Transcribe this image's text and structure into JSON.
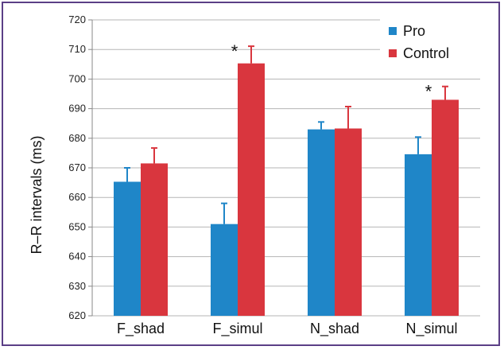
{
  "chart_data": {
    "type": "bar",
    "ylabel": "R–R intervals (ms)",
    "xlabel": "",
    "title": "",
    "ylim": [
      620,
      720
    ],
    "yticks": [
      620,
      630,
      640,
      650,
      660,
      670,
      680,
      690,
      700,
      710,
      720
    ],
    "grid": true,
    "legend_position": "top-right",
    "categories": [
      "F_shad",
      "F_simul",
      "N_shad",
      "N_simul"
    ],
    "series": [
      {
        "name": "Pro",
        "color": "#1f86c8",
        "values": [
          665.3,
          651,
          683,
          674.6
        ],
        "errors": [
          4.7,
          7,
          2.5,
          5.8
        ]
      },
      {
        "name": "Control",
        "color": "#d9363e",
        "values": [
          671.5,
          705.3,
          683.3,
          693
        ],
        "errors": [
          5.2,
          5.8,
          7.4,
          4.5
        ]
      }
    ],
    "annotations": [
      {
        "category": "F_simul",
        "series": "Control",
        "text": "*"
      },
      {
        "category": "N_simul",
        "series": "Control",
        "text": "*"
      }
    ]
  }
}
